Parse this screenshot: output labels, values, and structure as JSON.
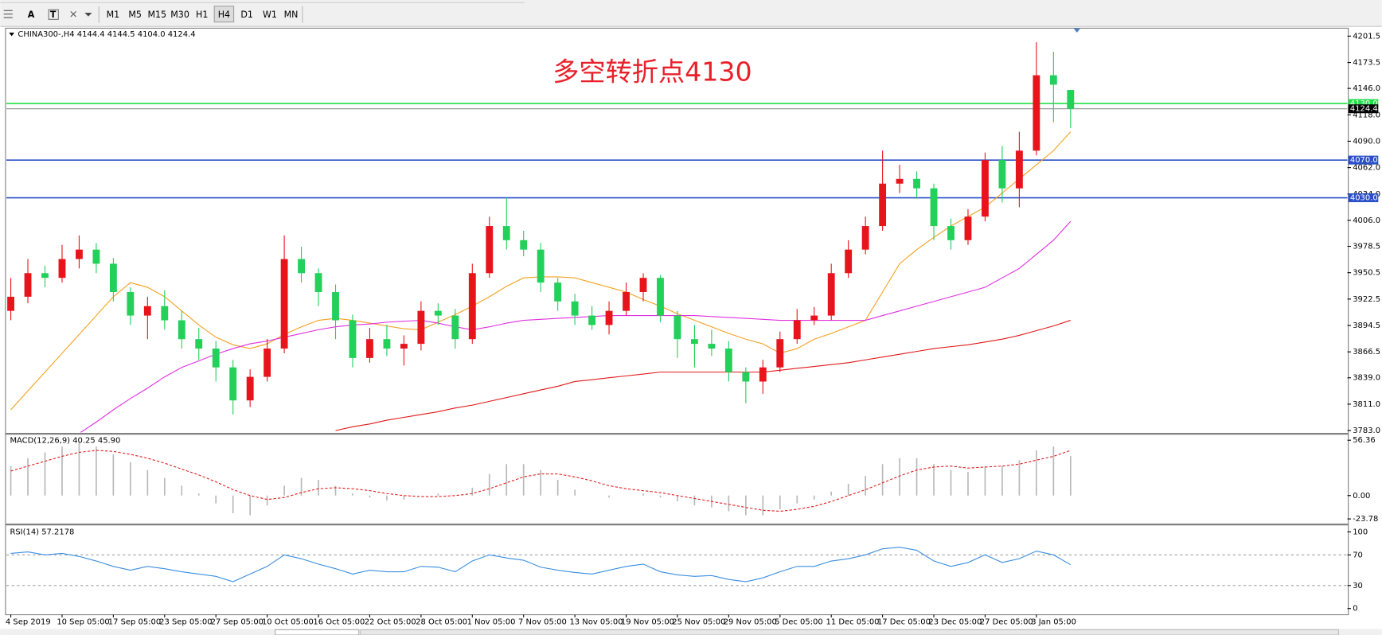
{
  "toolbar": {
    "tools": [
      "A",
      "T"
    ],
    "buttons": [
      "M1",
      "M5",
      "M15",
      "M30",
      "H1",
      "H4",
      "D1",
      "W1",
      "MN"
    ],
    "active": "H4"
  },
  "chart_data": [
    {
      "type": "candlestick",
      "title": "CHINA300-,H4  4144.4 4144.5 4104.0 4124.4",
      "annotation": "多空转折点4130",
      "categories": [
        "4 Sep 2019",
        null,
        null,
        "10 Sep 05:00",
        null,
        null,
        "17 Sep 05:00",
        null,
        null,
        "23 Sep 05:00",
        null,
        null,
        "27 Sep 05:00",
        null,
        null,
        "10 Oct 05:00",
        null,
        null,
        "16 Oct 05:00",
        null,
        null,
        "22 Oct 05:00",
        null,
        null,
        "28 Oct 05:00",
        null,
        null,
        "1 Nov 05:00",
        null,
        null,
        "7 Nov 05:00",
        null,
        null,
        "13 Nov 05:00",
        null,
        null,
        "19 Nov 05:00",
        null,
        null,
        "25 Nov 05:00",
        null,
        null,
        "29 Nov 05:00",
        null,
        null,
        "5 Dec 05:00",
        null,
        null,
        "11 Dec 05:00",
        null,
        null,
        "17 Dec 05:00",
        null,
        null,
        "23 Dec 05:00",
        null,
        null,
        "27 Dec 05:00",
        null,
        null,
        "3 Jan 05:00",
        null,
        null
      ],
      "open": [
        3910,
        3925,
        3950,
        3945,
        3965,
        3975,
        3960,
        3930,
        3905,
        3915,
        3900,
        3880,
        3870,
        3850,
        3815,
        3840,
        3870,
        3965,
        3950,
        3930,
        3900,
        3860,
        3880,
        3870,
        3875,
        3910,
        3905,
        3880,
        3950,
        4000,
        3985,
        3975,
        3940,
        3920,
        3905,
        3895,
        3910,
        3930,
        3945,
        3905,
        3880,
        3875,
        3870,
        3845,
        3835,
        3850,
        3880,
        3900,
        3905,
        3950,
        3975,
        4000,
        4045,
        4050,
        4040,
        4000,
        3985,
        4010,
        4070,
        4040,
        4080,
        4160,
        4144.4
      ],
      "high": [
        3945,
        3965,
        3958,
        3980,
        3990,
        3982,
        3966,
        3935,
        3925,
        3932,
        3910,
        3892,
        3878,
        3858,
        3848,
        3880,
        3990,
        3978,
        3955,
        3938,
        3906,
        3892,
        3895,
        3884,
        3920,
        3918,
        3912,
        3960,
        4010,
        4030,
        3995,
        3982,
        3945,
        3928,
        3915,
        3920,
        3940,
        3950,
        3948,
        3910,
        3895,
        3890,
        3878,
        3850,
        3858,
        3888,
        3912,
        3914,
        3960,
        3985,
        4010,
        4080,
        4065,
        4058,
        4045,
        4008,
        4018,
        4078,
        4085,
        4100,
        4195,
        4185,
        4144.5
      ],
      "low": [
        3900,
        3918,
        3935,
        3940,
        3955,
        3950,
        3920,
        3895,
        3880,
        3890,
        3870,
        3858,
        3835,
        3800,
        3808,
        3835,
        3865,
        3940,
        3915,
        3880,
        3850,
        3855,
        3862,
        3852,
        3868,
        3895,
        3870,
        3875,
        3945,
        3975,
        3968,
        3930,
        3910,
        3895,
        3890,
        3885,
        3905,
        3920,
        3898,
        3860,
        3850,
        3862,
        3835,
        3812,
        3822,
        3845,
        3875,
        3895,
        3900,
        3945,
        3970,
        3995,
        4035,
        4030,
        3985,
        3975,
        3980,
        4005,
        4025,
        4020,
        4075,
        4110,
        4104.0
      ],
      "close": [
        3925,
        3950,
        3945,
        3965,
        3975,
        3960,
        3930,
        3905,
        3915,
        3900,
        3880,
        3870,
        3850,
        3815,
        3840,
        3870,
        3965,
        3950,
        3930,
        3900,
        3860,
        3880,
        3870,
        3875,
        3910,
        3905,
        3880,
        3950,
        4000,
        3985,
        3975,
        3940,
        3920,
        3905,
        3895,
        3910,
        3930,
        3945,
        3905,
        3880,
        3875,
        3870,
        3845,
        3835,
        3850,
        3880,
        3900,
        3905,
        3950,
        3975,
        4000,
        4045,
        4050,
        4040,
        4000,
        3985,
        4010,
        4070,
        4040,
        4080,
        4160,
        4150,
        4124.4
      ],
      "up_color": "#e8141c",
      "down_color": "#22d05a",
      "series": [
        {
          "color": "#f5a020",
          "values": [
            3805,
            3825,
            3845,
            3865,
            3885,
            3905,
            3925,
            3940,
            3935,
            3925,
            3910,
            3895,
            3882,
            3874,
            3870,
            3875,
            3885,
            3893,
            3900,
            3902,
            3900,
            3897,
            3894,
            3891,
            3890,
            3898,
            3906,
            3915,
            3925,
            3936,
            3945,
            3946,
            3946,
            3945,
            3940,
            3935,
            3930,
            3922,
            3915,
            3907,
            3900,
            3893,
            3886,
            3880,
            3875,
            3865,
            3870,
            3880,
            3886,
            3893,
            3900,
            3930,
            3960,
            3975,
            3988,
            4000,
            4010,
            4020,
            4035,
            4050,
            4065,
            4080,
            4100
          ]
        },
        {
          "color": "#e030e0",
          "values": [
            null,
            null,
            null,
            null,
            3780,
            3792,
            3805,
            3817,
            3828,
            3840,
            3850,
            3857,
            3864,
            3870,
            3875,
            3878,
            3882,
            3886,
            3890,
            3893,
            3895,
            3896,
            3898,
            3899,
            3900,
            3897,
            3893,
            3890,
            3893,
            3897,
            3900,
            3901,
            3902,
            3903,
            3904,
            3905,
            3905,
            3905,
            3905,
            3905,
            3905,
            3904,
            3903,
            3902,
            3901,
            3900,
            3900,
            3900,
            3900,
            3900,
            3900,
            3905,
            3910,
            3915,
            3920,
            3925,
            3930,
            3935,
            3945,
            3955,
            3970,
            3985,
            4005
          ]
        },
        {
          "color": "#e01818",
          "values": [
            null,
            null,
            null,
            null,
            null,
            null,
            null,
            null,
            null,
            null,
            null,
            null,
            null,
            null,
            null,
            null,
            null,
            null,
            null,
            3783,
            3787,
            3790,
            3794,
            3797,
            3800,
            3803,
            3807,
            3810,
            3814,
            3818,
            3822,
            3826,
            3830,
            3835,
            3837,
            3839,
            3841,
            3843,
            3845,
            3845,
            3845,
            3845,
            3845,
            3845,
            3845,
            3847,
            3849,
            3851,
            3853,
            3855,
            3858,
            3861,
            3864,
            3867,
            3870,
            3872,
            3874,
            3877,
            3880,
            3884,
            3889,
            3894,
            3900
          ]
        }
      ],
      "levels": [
        {
          "value": 4130,
          "label": "4130.0",
          "color": "#22e04a"
        },
        {
          "value": 4070,
          "label": "4070.0",
          "color": "#2a4fc8"
        },
        {
          "value": 4030,
          "label": "4030.0",
          "color": "#2a4fc8"
        }
      ],
      "price": {
        "value": 4124.4,
        "label": "4124.4"
      },
      "ylim": [
        3781,
        4209
      ],
      "yticks": [
        4201.5,
        4173.5,
        {
          "value": 4146,
          "label": "4146.0"
        },
        {
          "value": 4118,
          "label": "4118.0"
        },
        {
          "value": 4090,
          "label": "4090.0"
        },
        {
          "value": 4062,
          "label": "4062.0"
        },
        {
          "value": 4034,
          "label": "4034.0"
        },
        {
          "value": 4006,
          "label": "4006.0"
        },
        3978.5,
        3950.5,
        3922.5,
        3894.5,
        3866.5,
        {
          "value": 3839,
          "label": "3839.0"
        },
        {
          "value": 3811,
          "label": "3811.0"
        },
        {
          "value": 3783,
          "label": "3783.0"
        }
      ]
    },
    {
      "type": "macd",
      "title": "MACD(12,26,9) 40.25 45.90",
      "histogram": [
        30,
        38,
        44,
        50,
        54,
        50,
        42,
        34,
        26,
        18,
        10,
        2,
        -8,
        -18,
        -20,
        -10,
        10,
        18,
        16,
        10,
        2,
        -2,
        -5,
        -4,
        0,
        2,
        0,
        8,
        22,
        32,
        32,
        26,
        16,
        6,
        0,
        -2,
        0,
        2,
        -2,
        -6,
        -10,
        -12,
        -16,
        -20,
        -20,
        -14,
        -8,
        -4,
        4,
        12,
        20,
        32,
        38,
        38,
        32,
        26,
        24,
        30,
        30,
        36,
        46,
        50,
        40.25
      ],
      "signal": [
        25,
        30,
        35,
        40,
        44,
        46,
        45,
        42,
        38,
        33,
        27,
        21,
        14,
        6,
        0,
        -4,
        -2,
        3,
        7,
        8,
        7,
        5,
        2,
        0,
        -1,
        -1,
        0,
        2,
        7,
        13,
        19,
        22,
        22,
        19,
        15,
        10,
        7,
        5,
        3,
        0,
        -3,
        -6,
        -9,
        -12,
        -15,
        -16,
        -14,
        -11,
        -6,
        0,
        6,
        13,
        20,
        26,
        29,
        30,
        28,
        29,
        30,
        32,
        36,
        40,
        45.9
      ],
      "hist_color": "#b8b8b8",
      "signal_color": "#e02020",
      "ylim": [
        -28.1,
        61.6
      ],
      "yticks": [
        56.36,
        {
          "value": 0,
          "label": "0.00"
        },
        -23.78
      ]
    },
    {
      "type": "rsi",
      "title": "RSI(14) 57.2178",
      "values": [
        72,
        74,
        70,
        72,
        68,
        62,
        55,
        50,
        55,
        52,
        48,
        45,
        42,
        35,
        45,
        55,
        70,
        65,
        58,
        52,
        45,
        50,
        48,
        48,
        55,
        54,
        48,
        62,
        70,
        66,
        63,
        54,
        50,
        47,
        45,
        50,
        55,
        58,
        48,
        44,
        42,
        43,
        38,
        35,
        40,
        48,
        55,
        55,
        62,
        65,
        70,
        78,
        80,
        76,
        62,
        55,
        60,
        70,
        60,
        65,
        75,
        70,
        57.2178
      ],
      "color": "#3a8ee0",
      "levels": [
        70,
        30
      ],
      "ylim": [
        -7,
        108
      ],
      "yticks": [
        100,
        70,
        30,
        0
      ]
    }
  ]
}
